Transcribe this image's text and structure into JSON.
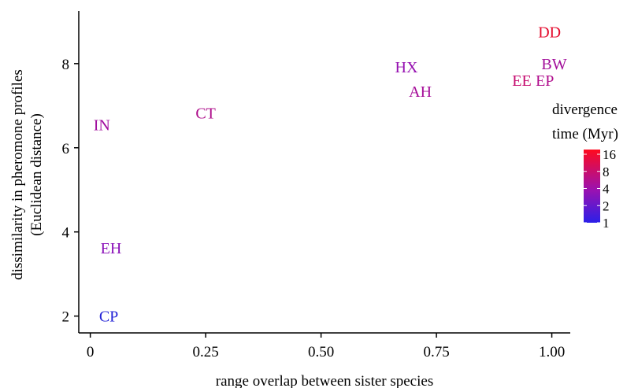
{
  "chart_data": {
    "type": "scatter",
    "title": "",
    "xlabel": "range overlap between sister species",
    "ylabel_lines": [
      "dissimilarity in pheromone profiles",
      "(Euclidean distance)"
    ],
    "xlim": [
      -0.025,
      1.04
    ],
    "ylim": [
      1.6,
      9.25
    ],
    "xticks": [
      0,
      0.25,
      0.5,
      0.75,
      1.0
    ],
    "xtick_labels": [
      "0",
      "0.25",
      "0.50",
      "0.75",
      "1.00"
    ],
    "yticks": [
      2,
      4,
      6,
      8
    ],
    "ytick_labels": [
      "2",
      "4",
      "6",
      "8"
    ],
    "grid": false,
    "color_scale": {
      "title_lines": [
        "divergence",
        "time (Myr)"
      ],
      "scale": "log",
      "ticks": [
        "16",
        "8",
        "4",
        "2",
        "1"
      ],
      "low_color": "#2b1fe8",
      "mid_color": "#9b12b0",
      "high_color": "#ff0a1e"
    },
    "points": [
      {
        "label": "CP",
        "x": 0.04,
        "y": 2.0,
        "color": "#2323d6"
      },
      {
        "label": "EH",
        "x": 0.045,
        "y": 3.62,
        "color": "#8a10b8"
      },
      {
        "label": "IN",
        "x": 0.025,
        "y": 6.55,
        "color": "#a00c9e"
      },
      {
        "label": "CT",
        "x": 0.25,
        "y": 6.83,
        "color": "#ad0b8a"
      },
      {
        "label": "HX",
        "x": 0.685,
        "y": 7.92,
        "color": "#950fb0"
      },
      {
        "label": "AH",
        "x": 0.715,
        "y": 7.34,
        "color": "#a50c98"
      },
      {
        "label": "EE",
        "x": 0.935,
        "y": 7.6,
        "color": "#c5096e"
      },
      {
        "label": "EP",
        "x": 0.985,
        "y": 7.6,
        "color": "#b00c8c"
      },
      {
        "label": "BW",
        "x": 1.005,
        "y": 8.0,
        "color": "#a20e9a"
      },
      {
        "label": "DD",
        "x": 0.995,
        "y": 8.75,
        "color": "#e40a2c"
      }
    ]
  }
}
